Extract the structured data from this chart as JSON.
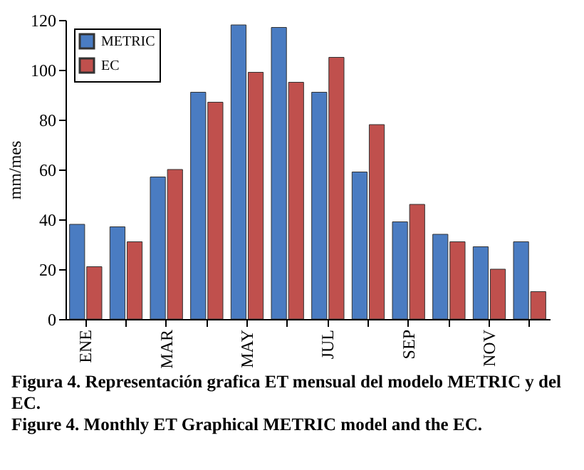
{
  "chart_data": {
    "type": "bar",
    "ylabel": "mm/mes",
    "categories": [
      "ENE",
      null,
      "MAR",
      null,
      "MAY",
      null,
      "JUL",
      null,
      "SEP",
      null,
      "NOV",
      null
    ],
    "series": [
      {
        "name": "METRIC",
        "color": "#4a7cc2",
        "values": [
          38,
          37,
          57,
          91,
          118,
          117,
          91,
          59,
          39,
          34,
          29,
          31
        ]
      },
      {
        "name": "EC",
        "color": "#c0504d",
        "values": [
          21,
          31,
          60,
          87,
          99,
          95,
          105,
          78,
          46,
          31,
          20,
          11
        ]
      }
    ],
    "ylim": [
      0,
      120
    ],
    "yticks": [
      0,
      20,
      40,
      60,
      80,
      100,
      120
    ],
    "grid": false,
    "legend": "top left",
    "annotations": [
      "Figura 4. Representación grafica ET mensual del modelo METRIC y del EC.",
      "Figure 4. Monthly ET Graphical METRIC model and the EC."
    ]
  }
}
